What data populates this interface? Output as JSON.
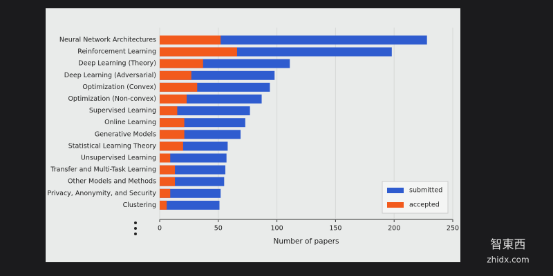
{
  "chart_data": {
    "type": "barh",
    "categories": [
      "Neural Network Architectures",
      "Reinforcement Learning",
      "Deep Learning (Theory)",
      "Deep Learning (Adversarial)",
      "Optimization (Convex)",
      "Optimization (Non-convex)",
      "Supervised Learning",
      "Online Learning",
      "Generative Models",
      "Statistical Learning Theory",
      "Unsupervised Learning",
      "Transfer and Multi-Task Learning",
      "Other Models and Methods",
      "Privacy, Anonymity, and Security",
      "Clustering"
    ],
    "series": [
      {
        "name": "submitted",
        "color": "#2f5ccf",
        "values": [
          228,
          198,
          111,
          98,
          94,
          87,
          77,
          73,
          69,
          58,
          57,
          56,
          55,
          52,
          51
        ]
      },
      {
        "name": "accepted",
        "color": "#f25a1c",
        "values": [
          52,
          66,
          37,
          27,
          32,
          23,
          15,
          21,
          21,
          20,
          9,
          13,
          13,
          9,
          6
        ]
      }
    ],
    "xlim": [
      0,
      250
    ],
    "xticks": [
      0,
      50,
      100,
      150,
      200,
      250
    ],
    "xlabel": "Number of papers",
    "grid": true,
    "legend": "lower right"
  },
  "watermark": {
    "logo": "智東西",
    "site": "zhidx.com"
  }
}
